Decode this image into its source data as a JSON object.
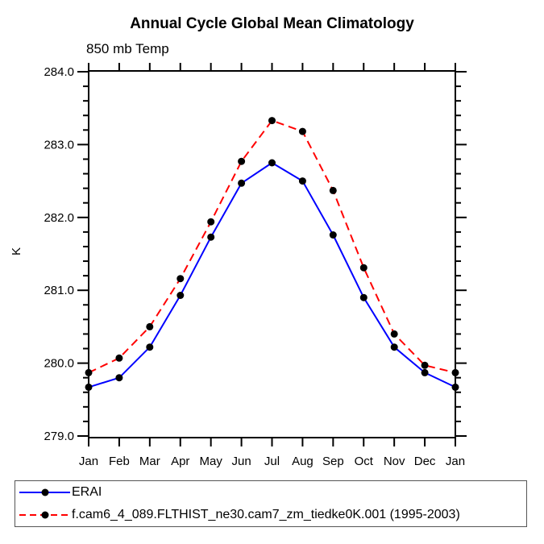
{
  "title": "Annual Cycle Global Mean Climatology",
  "subtitle": "850 mb Temp",
  "y_axis_label": "K",
  "colors": {
    "erai_line": "#0000ff",
    "model_line": "#ff0000",
    "marker": "#000000",
    "axis": "#000000"
  },
  "chart_data": {
    "type": "line",
    "title": "Annual Cycle Global Mean Climatology",
    "subtitle": "850 mb Temp",
    "xlabel": "",
    "ylabel": "K",
    "categories": [
      "Jan",
      "Feb",
      "Mar",
      "Apr",
      "May",
      "Jun",
      "Jul",
      "Aug",
      "Sep",
      "Oct",
      "Nov",
      "Dec",
      "Jan"
    ],
    "ylim": [
      279.0,
      284.0
    ],
    "y_major_ticks": [
      279.0,
      280.0,
      281.0,
      282.0,
      283.0,
      284.0
    ],
    "y_tick_labels": [
      "279.0",
      "280.0",
      "281.0",
      "282.0",
      "283.0",
      "284.0"
    ],
    "y_minor_step": 0.2,
    "grid": false,
    "legend_position": "bottom",
    "marker": "filled-circle",
    "marker_color": "#000000",
    "series": [
      {
        "name": "ERAI",
        "color": "#0000ff",
        "style": "solid",
        "values": [
          279.67,
          279.8,
          280.22,
          280.93,
          281.73,
          282.47,
          282.75,
          282.5,
          281.76,
          280.9,
          280.22,
          279.87,
          279.67
        ]
      },
      {
        "name": "f.cam6_4_089.FLTHIST_ne30.cam7_zm_tiedke0K.001 (1995-2003)",
        "color": "#ff0000",
        "style": "dashed",
        "values": [
          279.87,
          280.07,
          280.5,
          281.16,
          281.94,
          282.77,
          283.33,
          283.18,
          282.37,
          281.31,
          280.4,
          279.97,
          279.87
        ]
      }
    ]
  }
}
